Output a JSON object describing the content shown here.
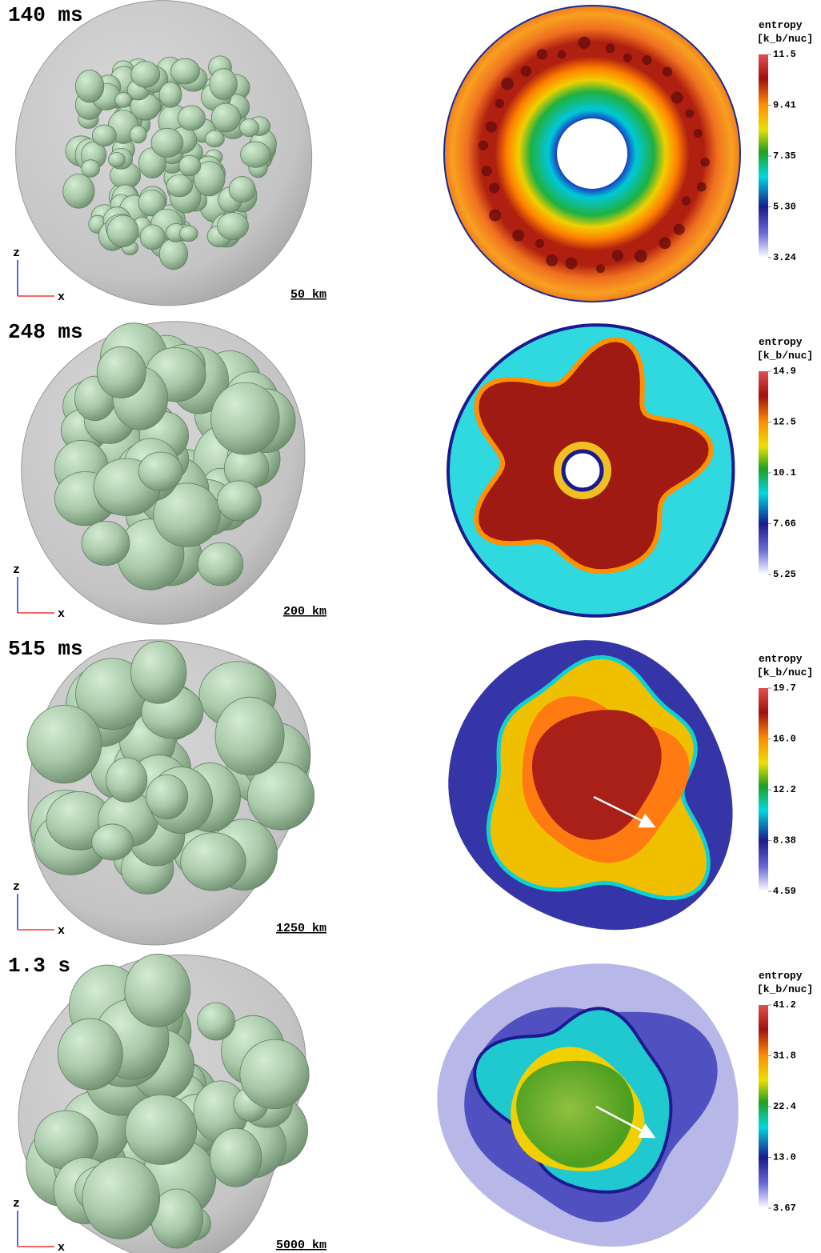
{
  "panels": [
    {
      "time": "140 ms",
      "scale": "50 km",
      "axis_z": "z",
      "axis_x": "x",
      "colorbar_title": "entropy",
      "colorbar_unit": "[k_b/nuc]",
      "colorbar_ticks": [
        "11.5",
        "9.41",
        "7.35",
        "5.30",
        "3.24"
      ]
    },
    {
      "time": "248 ms",
      "scale": "200 km",
      "axis_z": "z",
      "axis_x": "x",
      "colorbar_title": "entropy",
      "colorbar_unit": "[k_b/nuc]",
      "colorbar_ticks": [
        "14.9",
        "12.5",
        "10.1",
        "7.66",
        "5.25"
      ]
    },
    {
      "time": "515 ms",
      "scale": "1250 km",
      "axis_z": "z",
      "axis_x": "x",
      "colorbar_title": "entropy",
      "colorbar_unit": "[k_b/nuc]",
      "colorbar_ticks": [
        "19.7",
        "16.0",
        "12.2",
        "8.38",
        "4.59"
      ]
    },
    {
      "time": "1.3 s",
      "scale": "5000 km",
      "axis_z": "z",
      "axis_x": "x",
      "colorbar_title": "entropy",
      "colorbar_unit": "[k_b/nuc]",
      "colorbar_ticks": [
        "41.2",
        "31.8",
        "22.4",
        "13.0",
        "3.67"
      ]
    }
  ]
}
